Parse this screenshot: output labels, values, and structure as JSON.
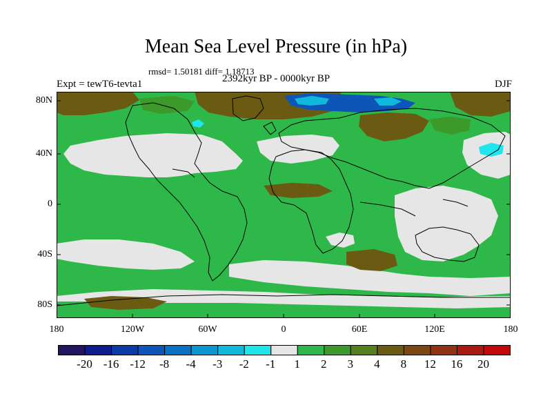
{
  "title": "Mean Sea Level Pressure (in hPa)",
  "stats": "rmsd= 1.50181 diff= 1.18713",
  "experiment": "Expt = tewT6-tevta1",
  "period": "2392kyr BP - 0000kyr BP",
  "season": "DJF",
  "y_axis_labels": [
    "80N",
    "40N",
    "0",
    "40S",
    "80S"
  ],
  "x_axis_labels": [
    "180",
    "120W",
    "60W",
    "0",
    "60E",
    "120E",
    "180"
  ],
  "colorbar": {
    "colors": [
      "#22145e",
      "#0f1c90",
      "#0a3aa6",
      "#0d55b8",
      "#0a72c4",
      "#0b96d0",
      "#10b8dc",
      "#1ee6ec",
      "#e6e6e6",
      "#2eb84a",
      "#3c9a2a",
      "#567f1e",
      "#6b5b12",
      "#7d4612",
      "#933212",
      "#a91a10",
      "#c30808"
    ],
    "labels": [
      "-20",
      "-16",
      "-12",
      "-8",
      "-4",
      "-3",
      "-2",
      "-1",
      "1",
      "2",
      "3",
      "4",
      "8",
      "12",
      "16",
      "20"
    ]
  },
  "map_colors": {
    "green": "#2eb84a",
    "light_gray": "#e6e6e6",
    "brown": "#6b5b12",
    "dark_green": "#567f1e",
    "blue": "#0d55b8",
    "light_blue": "#10b8dc",
    "cyan": "#1ee6ec"
  }
}
